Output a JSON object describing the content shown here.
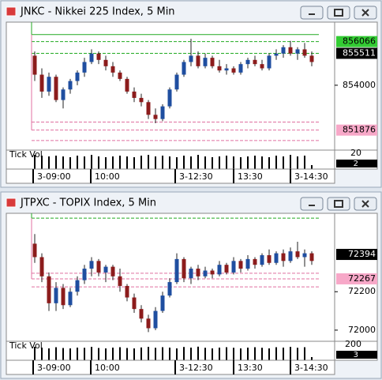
{
  "windows": [
    {
      "title": "JNKC - Nikkei 225 Index, 5 Min",
      "ylim": [
        850929,
        856988
      ],
      "yticks": [
        854000
      ],
      "current": 855511,
      "levels": [
        {
          "value": 856400,
          "color": "#22aa22",
          "dash": false
        },
        {
          "value": 856066,
          "color": "#22aa22",
          "dash": true,
          "label_color": "#33cc33"
        },
        {
          "value": 855511,
          "color": "#22aa22",
          "dash": true
        },
        {
          "value": 852255,
          "color": "#e070a0",
          "dash": true
        },
        {
          "value": 851876,
          "color": "#e070a0",
          "dash": true,
          "label_color": "#f7a8c8"
        },
        {
          "value": 851384,
          "color": "#e070a0",
          "dash": true
        }
      ],
      "candles": [
        [
          855400,
          855600,
          854200,
          854500
        ],
        [
          854500,
          854800,
          853400,
          853700
        ],
        [
          853700,
          854600,
          853500,
          854400
        ],
        [
          854400,
          854500,
          853200,
          853300
        ],
        [
          853300,
          853900,
          852900,
          853800
        ],
        [
          853800,
          854300,
          853600,
          854200
        ],
        [
          854200,
          854700,
          854000,
          854600
        ],
        [
          854600,
          855300,
          854400,
          855100
        ],
        [
          855100,
          855700,
          855000,
          855500
        ],
        [
          855500,
          855600,
          855000,
          855200
        ],
        [
          855200,
          855400,
          854700,
          854900
        ],
        [
          854900,
          855100,
          854400,
          854600
        ],
        [
          854600,
          854700,
          854200,
          854300
        ],
        [
          854300,
          854400,
          853600,
          853700
        ],
        [
          853700,
          853900,
          853200,
          853400
        ],
        [
          853400,
          853600,
          853000,
          853200
        ],
        [
          853200,
          853300,
          852400,
          852600
        ],
        [
          852600,
          852900,
          852200,
          852400
        ],
        [
          852400,
          853100,
          852300,
          853000
        ],
        [
          853000,
          853900,
          852900,
          853800
        ],
        [
          853800,
          854600,
          853700,
          854500
        ],
        [
          854500,
          855200,
          854400,
          855100
        ],
        [
          855100,
          856200,
          854900,
          855400
        ],
        [
          855400,
          855600,
          854800,
          854900
        ],
        [
          854900,
          855500,
          854800,
          855300
        ],
        [
          855300,
          855400,
          854800,
          854900
        ],
        [
          854900,
          855200,
          854600,
          854700
        ],
        [
          854700,
          855000,
          854500,
          854800
        ],
        [
          854800,
          854900,
          854500,
          854600
        ],
        [
          854600,
          855100,
          854500,
          855000
        ],
        [
          855000,
          855300,
          854800,
          855200
        ],
        [
          855200,
          855400,
          854900,
          855000
        ],
        [
          855000,
          855200,
          854700,
          854800
        ],
        [
          854800,
          855500,
          854700,
          855400
        ],
        [
          855400,
          855700,
          855200,
          855500
        ],
        [
          855500,
          855900,
          855300,
          855800
        ],
        [
          855800,
          856100,
          855400,
          855500
        ],
        [
          855500,
          855800,
          855200,
          855700
        ],
        [
          855700,
          856000,
          855300,
          855400
        ],
        [
          855400,
          855600,
          854900,
          855100
        ]
      ],
      "volume": {
        "label": "Tick Vol",
        "ylim": [
          0,
          24
        ],
        "ticks": [
          20
        ],
        "current": 2,
        "values": [
          18,
          17,
          16,
          17,
          16,
          15,
          17,
          16,
          18,
          16,
          15,
          16,
          17,
          16,
          15,
          17,
          18,
          16,
          17,
          16,
          15,
          17,
          16,
          18,
          16,
          15,
          16,
          17,
          16,
          15,
          16,
          17,
          16,
          15,
          17,
          16,
          18,
          16,
          17,
          5
        ]
      },
      "time_labels": [
        "3-09:00",
        "10:00",
        "3-12:30",
        "13:30",
        "3-14:30"
      ]
    },
    {
      "title": "JTPXC - TOPIX Index, 5 Min",
      "ylim": [
        71942,
        72608
      ],
      "yticks": [
        72200,
        72000
      ],
      "current": 72394,
      "levels": [
        {
          "value": 72583,
          "color": "#22aa22",
          "dash": true
        },
        {
          "value": 72296,
          "color": "#e070a0",
          "dash": true
        },
        {
          "value": 72267,
          "color": "#e070a0",
          "dash": true,
          "label_color": "#f7a8c8"
        },
        {
          "value": 72225,
          "color": "#e070a0",
          "dash": true
        }
      ],
      "candles": [
        [
          72450,
          72500,
          72350,
          72380
        ],
        [
          72380,
          72400,
          72250,
          72280
        ],
        [
          72280,
          72300,
          72100,
          72140
        ],
        [
          72140,
          72250,
          72100,
          72220
        ],
        [
          72220,
          72240,
          72110,
          72130
        ],
        [
          72130,
          72220,
          72120,
          72200
        ],
        [
          72200,
          72280,
          72180,
          72260
        ],
        [
          72260,
          72340,
          72240,
          72320
        ],
        [
          72320,
          72380,
          72280,
          72360
        ],
        [
          72360,
          72370,
          72280,
          72300
        ],
        [
          72300,
          72340,
          72250,
          72330
        ],
        [
          72330,
          72340,
          72260,
          72280
        ],
        [
          72280,
          72320,
          72200,
          72230
        ],
        [
          72230,
          72240,
          72150,
          72170
        ],
        [
          72170,
          72190,
          72090,
          72110
        ],
        [
          72110,
          72130,
          72040,
          72060
        ],
        [
          72060,
          72080,
          71990,
          72010
        ],
        [
          72010,
          72120,
          72000,
          72100
        ],
        [
          72100,
          72200,
          72090,
          72180
        ],
        [
          72180,
          72270,
          72170,
          72250
        ],
        [
          72250,
          72400,
          72240,
          72370
        ],
        [
          72370,
          72380,
          72250,
          72270
        ],
        [
          72270,
          72330,
          72240,
          72320
        ],
        [
          72320,
          72340,
          72260,
          72280
        ],
        [
          72280,
          72330,
          72270,
          72310
        ],
        [
          72310,
          72320,
          72270,
          72290
        ],
        [
          72290,
          72360,
          72280,
          72340
        ],
        [
          72340,
          72350,
          72290,
          72300
        ],
        [
          72300,
          72380,
          72290,
          72360
        ],
        [
          72360,
          72370,
          72300,
          72320
        ],
        [
          72320,
          72390,
          72310,
          72370
        ],
        [
          72370,
          72380,
          72320,
          72340
        ],
        [
          72340,
          72400,
          72330,
          72390
        ],
        [
          72390,
          72420,
          72340,
          72350
        ],
        [
          72350,
          72410,
          72340,
          72400
        ],
        [
          72400,
          72420,
          72330,
          72360
        ],
        [
          72360,
          72430,
          72350,
          72410
        ],
        [
          72410,
          72460,
          72370,
          72380
        ],
        [
          72380,
          72420,
          72330,
          72400
        ],
        [
          72400,
          72410,
          72340,
          72360
        ]
      ],
      "volume": {
        "label": "Tick Vol",
        "ylim": [
          0,
          240
        ],
        "ticks": [
          200
        ],
        "current": 3,
        "values": [
          170,
          160,
          150,
          165,
          155,
          150,
          160,
          158,
          170,
          155,
          150,
          160,
          165,
          155,
          150,
          162,
          170,
          158,
          165,
          160,
          150,
          168,
          160,
          172,
          158,
          150,
          160,
          165,
          158,
          150,
          160,
          165,
          158,
          150,
          165,
          160,
          170,
          158,
          165,
          40
        ]
      },
      "time_labels": [
        "3-09:00",
        "10:00",
        "3-12:30",
        "13:30",
        "3-14:30"
      ]
    }
  ]
}
